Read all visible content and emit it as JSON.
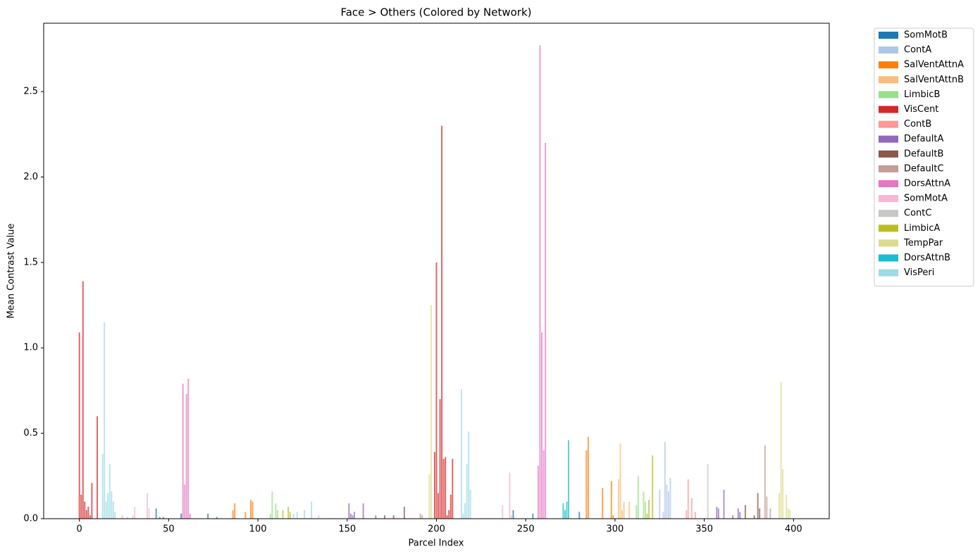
{
  "chart_data": {
    "type": "bar",
    "title": "Face > Others (Colored by Network)",
    "x_label": "Parcel Index",
    "y_label": "Mean Contrast Value",
    "xlim": [
      -20,
      420
    ],
    "xticks": [
      0,
      50,
      100,
      150,
      200,
      250,
      300,
      350,
      400
    ],
    "ylim": [
      0,
      2.9
    ],
    "yticks": [
      {
        "value": 0,
        "label": "0.0"
      },
      {
        "value": 0.5,
        "label": "0.5"
      },
      {
        "value": 1,
        "label": "1.0"
      },
      {
        "value": 1.5,
        "label": "1.5"
      },
      {
        "value": 2,
        "label": "2.0"
      },
      {
        "value": 2.5,
        "label": "2.5"
      }
    ],
    "legend_position": "outside-right",
    "series": [
      {
        "name": "SomMotB",
        "color": "#1f77b4",
        "x": [
          43,
          45,
          47,
          57,
          72,
          77,
          243,
          254,
          280
        ],
        "values": [
          0.06,
          0.01,
          0.01,
          0.03,
          0.03,
          0.01,
          0.05,
          0.03,
          0.04
        ]
      },
      {
        "name": "ContA",
        "color": "#aec7e8",
        "x": [
          325,
          327,
          328,
          329,
          330,
          331
        ],
        "values": [
          0.17,
          0.04,
          0.45,
          0.2,
          0.16,
          0.24
        ]
      },
      {
        "name": "SalVentAttnA",
        "color": "#ff7f0e",
        "x": [
          86,
          87,
          93,
          96,
          97,
          284,
          285,
          293,
          298,
          299
        ],
        "values": [
          0.05,
          0.09,
          0.04,
          0.11,
          0.1,
          0.4,
          0.48,
          0.18,
          0.22,
          0.02
        ]
      },
      {
        "name": "SalVentAttnB",
        "color": "#ffbb78",
        "x": [
          302,
          303,
          304,
          305,
          308
        ],
        "values": [
          0.23,
          0.44,
          0.05,
          0.1,
          0.1
        ]
      },
      {
        "name": "LimbicB",
        "color": "#98df8a",
        "x": [
          107,
          108,
          110,
          111,
          312,
          313,
          316,
          317
        ],
        "values": [
          0.03,
          0.16,
          0.09,
          0.05,
          0.08,
          0.25,
          0.16,
          0.1
        ]
      },
      {
        "name": "VisCent",
        "color": "#d62728",
        "x": [
          0,
          1,
          2,
          3,
          4,
          5,
          6,
          7,
          10,
          199,
          200,
          201,
          202,
          203,
          204,
          205,
          206,
          207,
          208,
          209
        ],
        "values": [
          1.09,
          0.14,
          1.39,
          0.1,
          0.05,
          0.07,
          0.02,
          0.21,
          0.6,
          0.39,
          1.5,
          0.15,
          0.7,
          2.3,
          0.35,
          0.36,
          0.02,
          0.05,
          0.14,
          0.35
        ]
      },
      {
        "name": "ContB",
        "color": "#ff9896",
        "x": [
          340,
          341,
          343,
          345
        ],
        "values": [
          0.05,
          0.23,
          0.12,
          0.04
        ]
      },
      {
        "name": "DefaultA",
        "color": "#9467bd",
        "x": [
          151,
          152,
          153,
          154,
          159,
          166,
          357,
          358,
          361,
          366,
          369,
          370
        ],
        "values": [
          0.09,
          0.03,
          0.02,
          0.04,
          0.09,
          0.02,
          0.07,
          0.06,
          0.17,
          0.02,
          0.06,
          0.04
        ]
      },
      {
        "name": "DefaultB",
        "color": "#8c564b",
        "x": [
          171,
          176,
          182,
          373,
          378,
          380,
          381
        ],
        "values": [
          0.02,
          0.02,
          0.07,
          0.08,
          0.02,
          0.15,
          0.06
        ]
      },
      {
        "name": "DefaultC",
        "color": "#c49c94",
        "x": [
          191,
          192,
          384,
          385,
          387
        ],
        "values": [
          0.03,
          0.02,
          0.43,
          0.13,
          0.06
        ]
      },
      {
        "name": "DorsAttnA",
        "color": "#e377c2",
        "x": [
          58,
          59,
          60,
          61,
          62,
          257,
          258,
          259,
          260,
          261
        ],
        "values": [
          0.79,
          0.2,
          0.73,
          0.82,
          0.03,
          0.31,
          2.77,
          1.09,
          0.4,
          2.2
        ]
      },
      {
        "name": "SomMotA",
        "color": "#f7b6d2",
        "x": [
          24,
          27,
          30,
          31,
          38,
          39,
          134,
          237,
          241,
          242
        ],
        "values": [
          0.02,
          0.01,
          0.02,
          0.07,
          0.15,
          0.06,
          0.02,
          0.08,
          0.27,
          0.02
        ]
      },
      {
        "name": "ContC",
        "color": "#c7c7c7",
        "x": [
          352
        ],
        "values": [
          0.32
        ]
      },
      {
        "name": "LimbicA",
        "color": "#bcbd22",
        "x": [
          114,
          117,
          118,
          318,
          319,
          321
        ],
        "values": [
          0.05,
          0.07,
          0.04,
          0.03,
          0.11,
          0.37
        ]
      },
      {
        "name": "TempPar",
        "color": "#dbdb8d",
        "x": [
          196,
          197,
          392,
          393,
          394,
          396,
          397,
          398
        ],
        "values": [
          0.26,
          1.25,
          0.15,
          0.8,
          0.29,
          0.14,
          0.06,
          0.05
        ]
      },
      {
        "name": "DorsAttnB",
        "color": "#17becf",
        "x": [
          271,
          272,
          273,
          274
        ],
        "values": [
          0.09,
          0.05,
          0.1,
          0.46
        ]
      },
      {
        "name": "VisPeri",
        "color": "#9edae5",
        "x": [
          13,
          14,
          15,
          16,
          17,
          18,
          19,
          20,
          120,
          122,
          126,
          130,
          214,
          215,
          216,
          217,
          218,
          219
        ],
        "values": [
          0.38,
          1.15,
          0.1,
          0.15,
          0.32,
          0.16,
          0.1,
          0.04,
          0.03,
          0.04,
          0.05,
          0.1,
          0.76,
          0.03,
          0.09,
          0.32,
          0.51,
          0.17
        ]
      }
    ]
  }
}
